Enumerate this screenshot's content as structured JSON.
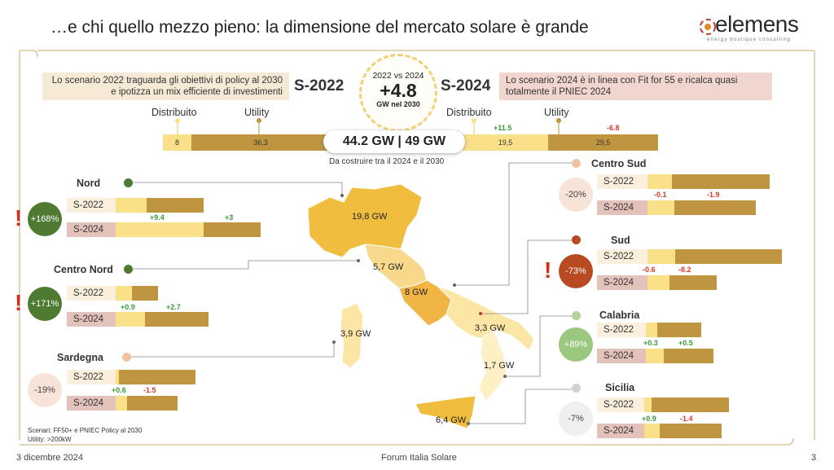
{
  "header": {
    "title": "…e chi quello mezzo pieno: la dimensione del mercato solare è grande"
  },
  "logo": {
    "name": "elemens",
    "tagline": "energy boutique consulting"
  },
  "scenarios": {
    "s2022": {
      "label": "S-2022",
      "description": "Lo scenario 2022 traguarda gli obiettivi di policy al 2030 e ipotizza un mix efficiente di investimenti",
      "distribuito_label": "Distribuito",
      "utility_label": "Utility",
      "distribuito_value": "8",
      "utility_value": "36,3"
    },
    "s2024": {
      "label": "S-2024",
      "description": "Lo scenario 2024 è in linea con Fit for 55 e ricalca quasi totalmente il PNIEC 2024",
      "distribuito_label": "Distribuito",
      "utility_label": "Utility",
      "distribuito_value": "19,5",
      "utility_value": "29,5",
      "distribuito_delta": "+11.5",
      "utility_delta": "-6.8"
    }
  },
  "center_badge": {
    "top": "2022 vs 2024",
    "value": "+4.8",
    "unit": "GW nel 2030"
  },
  "totals": {
    "value": "44.2 GW | 49 GW",
    "caption": "Da costruire tra il 2024 e il 2030"
  },
  "regions": {
    "nord": {
      "name": "Nord",
      "change": "+168%",
      "alert": "!",
      "s22": "S-2022",
      "s24": "S-2024",
      "d1": "+9.4",
      "d2": "+3",
      "map_label": "19,8 GW"
    },
    "centro_nord": {
      "name": "Centro Nord",
      "change": "+171%",
      "alert": "!",
      "s22": "S-2022",
      "s24": "S-2024",
      "d1": "+0.9",
      "d2": "+2.7",
      "map_label": "5,7 GW"
    },
    "sardegna": {
      "name": "Sardegna",
      "change": "-19%",
      "s22": "S-2022",
      "s24": "S-2024",
      "d1": "+0.6",
      "d2": "-1.5",
      "map_label": "3,9 GW"
    },
    "centro_sud": {
      "name": "Centro Sud",
      "change": "-20%",
      "s22": "S-2022",
      "s24": "S-2024",
      "d1": "-0.1",
      "d2": "-1.9",
      "map_label": "8 GW"
    },
    "sud": {
      "name": "Sud",
      "change": "-73%",
      "alert": "!",
      "s22": "S-2022",
      "s24": "S-2024",
      "d1": "-0.6",
      "d2": "-8.2",
      "map_label": "3,3 GW"
    },
    "calabria": {
      "name": "Calabria",
      "change": "+89%",
      "s22": "S-2022",
      "s24": "S-2024",
      "d1": "+0.3",
      "d2": "+0.5",
      "map_label": "1,7 GW"
    },
    "sicilia": {
      "name": "Sicilia",
      "change": "-7%",
      "s22": "S-2022",
      "s24": "S-2024",
      "d1": "+0.9",
      "d2": "-1.4",
      "map_label": "6,4 GW"
    }
  },
  "notes": {
    "line1": "Scenari: FF50+ e PNIEC Policy al 2030",
    "line2": "Utility: >200kW"
  },
  "footer": {
    "date": "3 dicembre 2024",
    "event": "Forum Italia Solare",
    "page": "3"
  },
  "colors": {
    "distribuito": "#fbe08a",
    "utility": "#bf9540",
    "positive": "#3a9a3a",
    "negative": "#d63a2a",
    "alert": "#d52b1e"
  }
}
